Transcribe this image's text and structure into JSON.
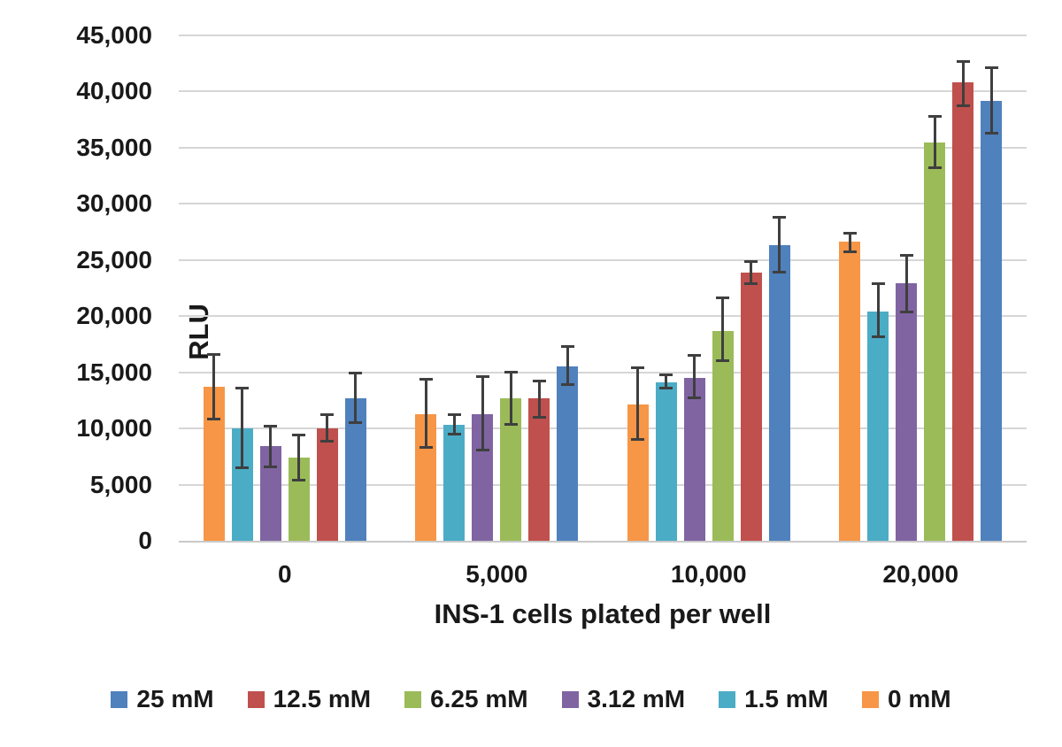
{
  "chart_data": {
    "type": "bar",
    "title": "",
    "xlabel": "INS-1 cells plated per well",
    "ylabel": "RLU",
    "ylim": [
      0,
      45000
    ],
    "ytick_step": 5000,
    "ytick_labels": [
      "0",
      "5,000",
      "10,000",
      "15,000",
      "20,000",
      "25,000",
      "30,000",
      "35,000",
      "40,000",
      "45,000"
    ],
    "categories": [
      "0",
      "5,000",
      "10,000",
      "20,000"
    ],
    "grid": true,
    "legend_position": "bottom",
    "legend_order": [
      "25 mM",
      "12.5 mM",
      "6.25 mM",
      "3.12 mM",
      "1.5 mM",
      "0 mM"
    ],
    "error_bar_color": "#3f3f3f",
    "gridline_color": "#d6d6d6",
    "series": [
      {
        "name": "0 mM",
        "color": "#F79646",
        "values": [
          13700,
          11300,
          12100,
          26600
        ],
        "err_low": [
          10800,
          8300,
          9000,
          25700
        ],
        "err_high": [
          16600,
          14400,
          15400,
          27400
        ]
      },
      {
        "name": "1.5 mM",
        "color": "#4BACC6",
        "values": [
          10000,
          10300,
          14100,
          20400
        ],
        "err_low": [
          6500,
          9500,
          13600,
          18200
        ],
        "err_high": [
          13600,
          11200,
          14800,
          22900
        ]
      },
      {
        "name": "3.12 mM",
        "color": "#8064A2",
        "values": [
          8400,
          11300,
          14500,
          22900
        ],
        "err_low": [
          6600,
          8100,
          12700,
          20400
        ],
        "err_high": [
          10200,
          14600,
          16500,
          25400
        ]
      },
      {
        "name": "6.25 mM",
        "color": "#9BBB59",
        "values": [
          7400,
          12700,
          18700,
          35500
        ],
        "err_low": [
          5400,
          10400,
          16000,
          33200
        ],
        "err_high": [
          9400,
          15000,
          21600,
          37800
        ]
      },
      {
        "name": "12.5 mM",
        "color": "#C0504D",
        "values": [
          10000,
          12700,
          23900,
          40800
        ],
        "err_low": [
          8900,
          11000,
          22900,
          38700
        ],
        "err_high": [
          11200,
          14200,
          24900,
          42700
        ]
      },
      {
        "name": "25 mM",
        "color": "#4F81BD",
        "values": [
          12700,
          15500,
          26300,
          39200
        ],
        "err_low": [
          10500,
          13900,
          23900,
          36300
        ],
        "err_high": [
          14900,
          17300,
          28800,
          42100
        ]
      }
    ]
  }
}
